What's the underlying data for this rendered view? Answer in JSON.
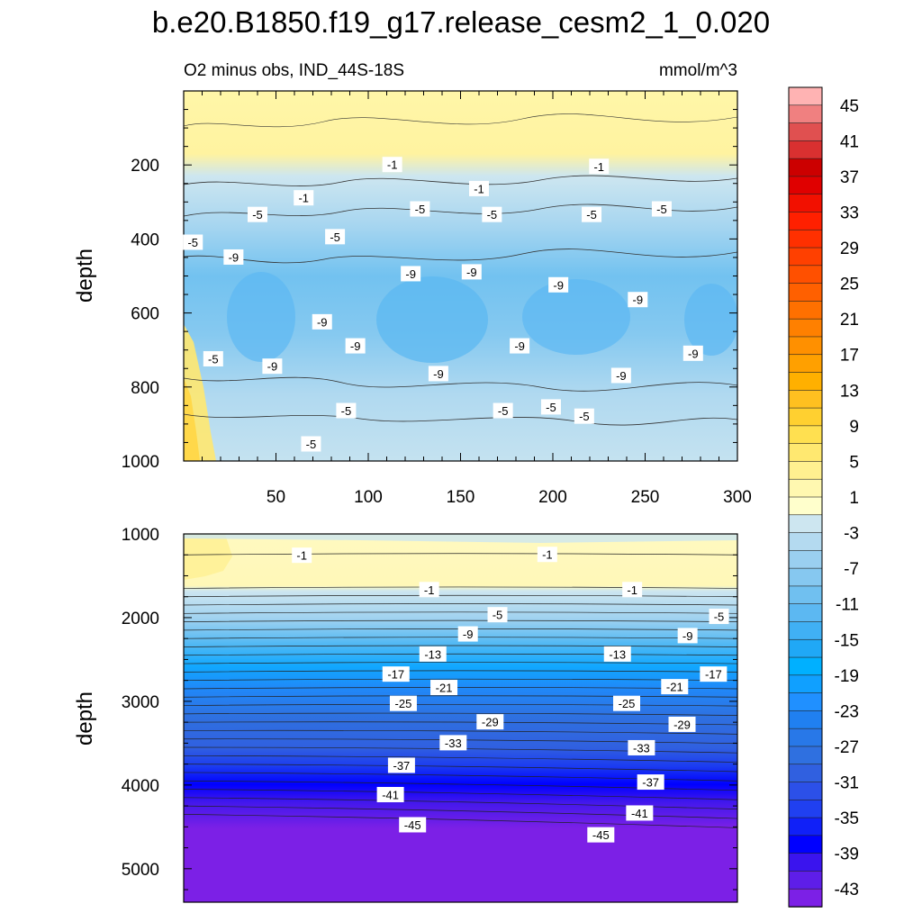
{
  "title": "b.e20.B1850.f19_g17.release_cesm2_1_0.020",
  "chart_data": {
    "type": "heatmap",
    "subtitle_left": "O2 minus obs, IND_44S-18S",
    "subtitle_right": "mmol/m^3",
    "panels": [
      {
        "name": "upper",
        "ylabel": "depth",
        "ylim": [
          1000,
          0
        ],
        "xlim": [
          0,
          300
        ],
        "xticks": [
          "50",
          "100",
          "150",
          "200",
          "250",
          "300"
        ],
        "yticks": [
          "200",
          "400",
          "600",
          "800",
          "1000"
        ],
        "contour_labels": [
          {
            "text": "-1",
            "x": 113,
            "y": 200
          },
          {
            "text": "-1",
            "x": 65,
            "y": 290
          },
          {
            "text": "-1",
            "x": 160,
            "y": 265
          },
          {
            "text": "-1",
            "x": 225,
            "y": 205
          },
          {
            "text": "-5",
            "x": 5,
            "y": 410
          },
          {
            "text": "-5",
            "x": 40,
            "y": 335
          },
          {
            "text": "-5",
            "x": 82,
            "y": 395
          },
          {
            "text": "-5",
            "x": 128,
            "y": 320
          },
          {
            "text": "-5",
            "x": 167,
            "y": 335
          },
          {
            "text": "-5",
            "x": 221,
            "y": 335
          },
          {
            "text": "-5",
            "x": 259,
            "y": 320
          },
          {
            "text": "-5",
            "x": 16,
            "y": 725
          },
          {
            "text": "-5",
            "x": 88,
            "y": 865
          },
          {
            "text": "-5",
            "x": 173,
            "y": 865
          },
          {
            "text": "-5",
            "x": 199,
            "y": 855
          },
          {
            "text": "-5",
            "x": 217,
            "y": 880
          },
          {
            "text": "-5",
            "x": 69,
            "y": 955
          },
          {
            "text": "-9",
            "x": 27,
            "y": 450
          },
          {
            "text": "-9",
            "x": 123,
            "y": 495
          },
          {
            "text": "-9",
            "x": 156,
            "y": 490
          },
          {
            "text": "-9",
            "x": 203,
            "y": 525
          },
          {
            "text": "-9",
            "x": 246,
            "y": 565
          },
          {
            "text": "-9",
            "x": 75,
            "y": 625
          },
          {
            "text": "-9",
            "x": 93,
            "y": 690
          },
          {
            "text": "-9",
            "x": 48,
            "y": 745
          },
          {
            "text": "-9",
            "x": 138,
            "y": 765
          },
          {
            "text": "-9",
            "x": 182,
            "y": 690
          },
          {
            "text": "-9",
            "x": 237,
            "y": 770
          },
          {
            "text": "-9",
            "x": 276,
            "y": 710
          }
        ]
      },
      {
        "name": "lower",
        "ylabel": "depth",
        "ylim": [
          5400,
          1000
        ],
        "xlim": [
          0,
          300
        ],
        "yticks": [
          "1000",
          "2000",
          "3000",
          "4000",
          "5000"
        ],
        "contour_labels": [
          {
            "text": "-1",
            "x": 64,
            "y": 1260
          },
          {
            "text": "-1",
            "x": 197,
            "y": 1250
          },
          {
            "text": "-1",
            "x": 133,
            "y": 1670
          },
          {
            "text": "-1",
            "x": 243,
            "y": 1670
          },
          {
            "text": "-5",
            "x": 170,
            "y": 1970
          },
          {
            "text": "-5",
            "x": 290,
            "y": 1990
          },
          {
            "text": "-9",
            "x": 154,
            "y": 2200
          },
          {
            "text": "-9",
            "x": 273,
            "y": 2220
          },
          {
            "text": "-13",
            "x": 135,
            "y": 2440
          },
          {
            "text": "-13",
            "x": 235,
            "y": 2440
          },
          {
            "text": "-17",
            "x": 115,
            "y": 2680
          },
          {
            "text": "-17",
            "x": 287,
            "y": 2680
          },
          {
            "text": "-21",
            "x": 141,
            "y": 2840
          },
          {
            "text": "-21",
            "x": 266,
            "y": 2830
          },
          {
            "text": "-25",
            "x": 119,
            "y": 3030
          },
          {
            "text": "-25",
            "x": 240,
            "y": 3030
          },
          {
            "text": "-29",
            "x": 166,
            "y": 3250
          },
          {
            "text": "-29",
            "x": 270,
            "y": 3280
          },
          {
            "text": "-33",
            "x": 146,
            "y": 3500
          },
          {
            "text": "-33",
            "x": 248,
            "y": 3560
          },
          {
            "text": "-37",
            "x": 118,
            "y": 3770
          },
          {
            "text": "-37",
            "x": 253,
            "y": 3970
          },
          {
            "text": "-41",
            "x": 112,
            "y": 4120
          },
          {
            "text": "-41",
            "x": 247,
            "y": 4340
          },
          {
            "text": "-45",
            "x": 124,
            "y": 4480
          },
          {
            "text": "-45",
            "x": 226,
            "y": 4600
          }
        ]
      }
    ],
    "colorbar": {
      "levels": [
        -45,
        -43,
        -41,
        -39,
        -37,
        -35,
        -33,
        -31,
        -29,
        -27,
        -25,
        -23,
        -21,
        -19,
        -17,
        -15,
        -13,
        -11,
        -9,
        -7,
        -5,
        -3,
        -1,
        1,
        3,
        5,
        7,
        9,
        11,
        13,
        15,
        17,
        19,
        21,
        23,
        25,
        27,
        29,
        31,
        33,
        35,
        37,
        39,
        41,
        43,
        45
      ],
      "labels": [
        "45",
        "41",
        "37",
        "33",
        "29",
        "25",
        "21",
        "17",
        "13",
        "9",
        "5",
        "1",
        "-3",
        "-7",
        "-11",
        "-15",
        "-19",
        "-23",
        "-27",
        "-31",
        "-35",
        "-39",
        "-43"
      ],
      "colors_top_to_bottom": [
        "#ffb3b3",
        "#f08080",
        "#e05050",
        "#d93030",
        "#cc0000",
        "#e00000",
        "#f21000",
        "#ff2000",
        "#ff3000",
        "#ff4000",
        "#ff5000",
        "#ff6000",
        "#ff7000",
        "#ff8000",
        "#ff9000",
        "#ffa000",
        "#ffb000",
        "#ffc020",
        "#ffd030",
        "#ffe050",
        "#ffe870",
        "#fff090",
        "#fff8b0",
        "#ffffcc",
        "#cde6f0",
        "#b4daf0",
        "#9acff0",
        "#86c8f0",
        "#70c0f0",
        "#5cb8f2",
        "#40b0f4",
        "#20a8f6",
        "#00b0ff",
        "#10a0ff",
        "#2090ff",
        "#2080f0",
        "#2878e8",
        "#2f70e0",
        "#3060e0",
        "#2c50e8",
        "#2040f0",
        "#1020f8",
        "#0000ff",
        "#3a14ee",
        "#5e1ee8",
        "#7c20e6"
      ]
    }
  }
}
